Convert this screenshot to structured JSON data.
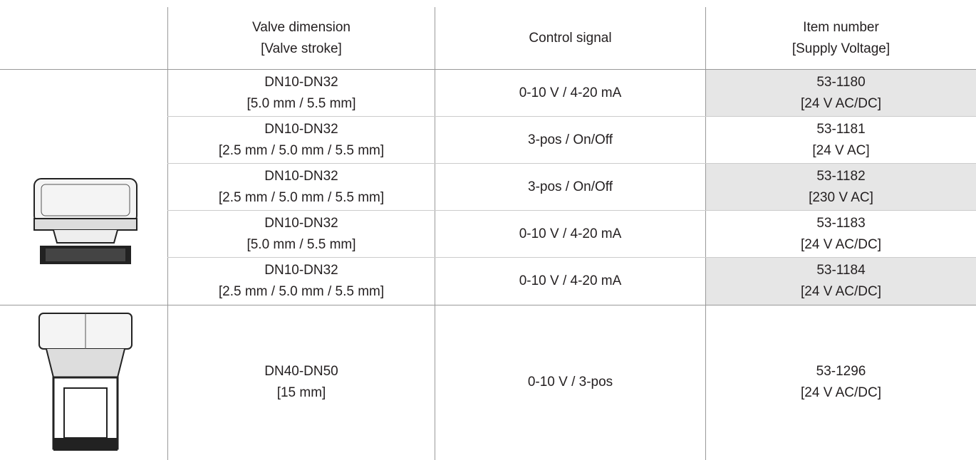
{
  "table": {
    "header": [
      [
        "Valve dimension",
        "[Valve stroke]"
      ],
      [
        "Control signal"
      ],
      [
        "Item number",
        "[Supply Voltage]"
      ]
    ],
    "rows": [
      [
        [
          "DN10-DN32",
          "[5.0 mm / 5.5 mm]"
        ],
        [
          "0-10 V / 4-20 mA"
        ],
        [
          "53-1180",
          "[24 V AC/DC]"
        ]
      ],
      [
        [
          "DN10-DN32",
          "[2.5 mm / 5.0 mm / 5.5 mm]"
        ],
        [
          "3-pos / On/Off"
        ],
        [
          "53-1181",
          "[24 V AC]"
        ]
      ],
      [
        [
          "DN10-DN32",
          "[2.5 mm / 5.0 mm / 5.5 mm]"
        ],
        [
          "3-pos / On/Off"
        ],
        [
          "53-1182",
          "[230 V AC]"
        ]
      ],
      [
        [
          "DN10-DN32",
          "[5.0 mm / 5.5 mm]"
        ],
        [
          "0-10 V / 4-20 mA"
        ],
        [
          "53-1183",
          "[24 V AC/DC]"
        ]
      ],
      [
        [
          "DN10-DN32",
          "[2.5 mm / 5.0 mm / 5.5 mm]"
        ],
        [
          "0-10 V / 4-20 mA"
        ],
        [
          "53-1184",
          "[24 V AC/DC]"
        ]
      ],
      [
        [
          "DN40-DN50",
          "[15 mm]"
        ],
        [
          "0-10 V / 3-pos"
        ],
        [
          "53-1296",
          "[24 V AC/DC]"
        ]
      ]
    ]
  }
}
